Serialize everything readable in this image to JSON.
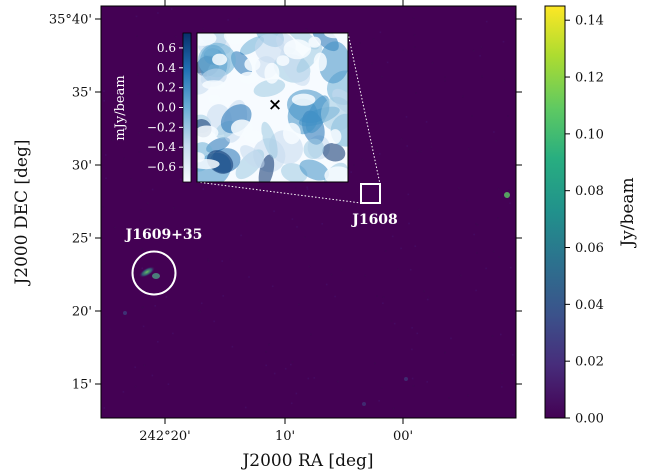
{
  "chart_data": [
    {
      "type": "heatmap",
      "panel": "main-sky-image",
      "xlabel": "J2000 RA [deg]",
      "ylabel": "J2000 DEC [deg]",
      "x_ticks": [
        "242°20'",
        "10'",
        "00'"
      ],
      "y_ticks": [
        "35°40'",
        "35'",
        "30'",
        "25'",
        "20'",
        "15'"
      ],
      "colormap": "viridis",
      "background_level": 0.0,
      "sources": [
        {
          "label": "J1609+35",
          "marker": "circle",
          "color": "#ffffff"
        },
        {
          "label": "J1608",
          "marker": "square",
          "color": "#ffffff"
        }
      ]
    },
    {
      "type": "heatmap",
      "panel": "colorbar",
      "colorbar_label": "Jy/beam",
      "colorbar_ticks": [
        "0.00",
        "0.02",
        "0.04",
        "0.06",
        "0.08",
        "0.10",
        "0.12",
        "0.14"
      ],
      "colorbar_range": [
        0.0,
        0.145
      ]
    },
    {
      "type": "heatmap",
      "panel": "inset-zoom",
      "colormap": "Blues",
      "colorbar_label": "mJy/beam",
      "colorbar_ticks": [
        "0.6",
        "0.4",
        "0.2",
        "0.0",
        "−0.2",
        "−0.4",
        "−0.6"
      ],
      "colorbar_range": [
        -0.75,
        0.75
      ],
      "marker": "×"
    }
  ],
  "colors": {
    "background": "#440154",
    "frame": "#000000",
    "annotation": "#ffffff"
  }
}
